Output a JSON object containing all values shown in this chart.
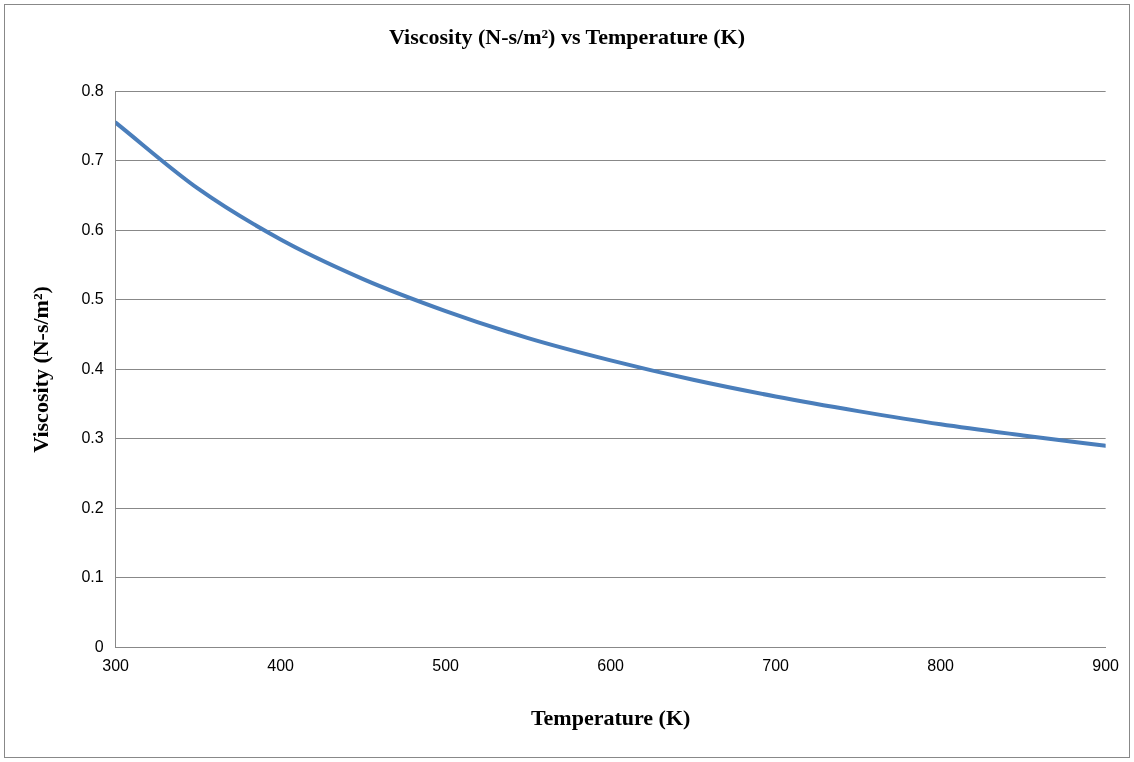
{
  "chart_data": {
    "type": "line",
    "title": "Viscosity (N-s/m²) vs Temperature (K)",
    "xlabel": "Temperature (K)",
    "ylabel": "Viscosity (N-s/m²)",
    "series": [
      {
        "color": "#4a7ebb",
        "x": [
          300,
          350,
          400,
          450,
          500,
          550,
          600,
          650,
          700,
          750,
          800,
          850,
          900
        ],
        "values": [
          0.755,
          0.66,
          0.587,
          0.53,
          0.484,
          0.445,
          0.413,
          0.385,
          0.361,
          0.34,
          0.321,
          0.305,
          0.29
        ]
      }
    ],
    "xlim": [
      300,
      900
    ],
    "xticks": [
      300,
      400,
      500,
      600,
      700,
      800,
      900
    ],
    "ylim": [
      0,
      0.8
    ],
    "yticks": [
      0,
      0.1,
      0.2,
      0.3,
      0.4,
      0.5,
      0.6,
      0.7,
      0.8
    ],
    "grid": "y",
    "legend": false,
    "marker": "none",
    "line_style": "solid"
  }
}
